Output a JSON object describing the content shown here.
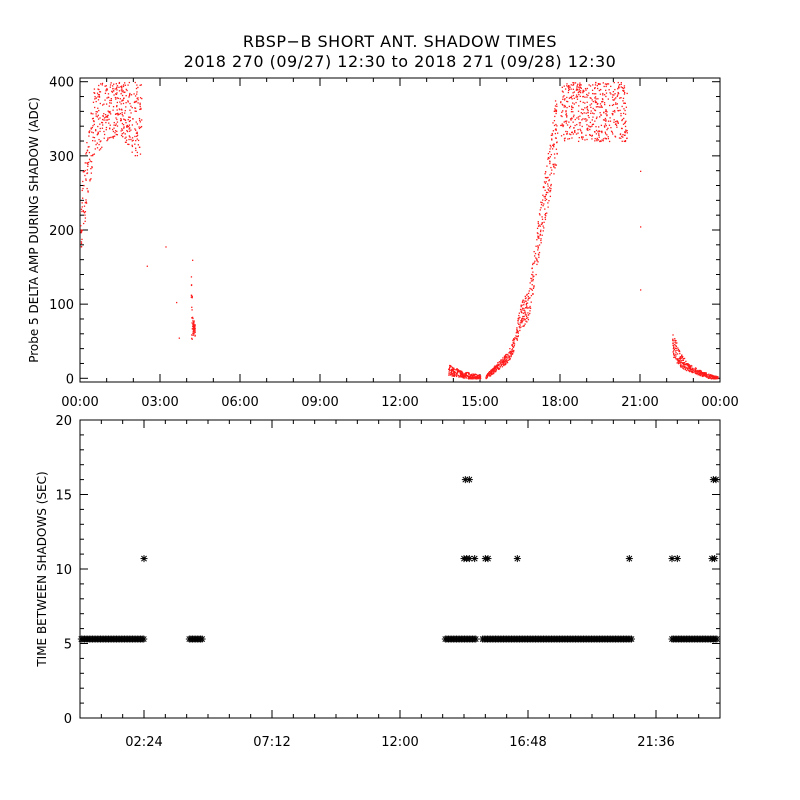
{
  "title": {
    "line1": "RBSP−B SHORT ANT. SHADOW TIMES",
    "line2": "2018 270 (09/27) 12:30 to 2018 271 (09/28) 12:30"
  },
  "colors": {
    "red": "#ff1a1a",
    "black": "#000000"
  },
  "chart_data": [
    {
      "type": "scatter",
      "ylabel": "Probe 5 DELTA AMP DURING SHADOW (ADC)",
      "xlim": [
        0,
        24
      ],
      "ylim": [
        -5,
        405
      ],
      "x_unit": "hours",
      "x_tick_labels": [
        "00:00",
        "03:00",
        "06:00",
        "09:00",
        "12:00",
        "15:00",
        "18:00",
        "21:00",
        "00:00"
      ],
      "y_tick_labels": [
        "0",
        "100",
        "200",
        "300",
        "400"
      ],
      "point_color": "#ff1a1a",
      "segments": [
        {
          "name": "early",
          "x": [
            0.0,
            0.5,
            1.0,
            1.5,
            2.0,
            2.3
          ],
          "y_low": [
            165,
            300,
            320,
            330,
            300,
            300
          ],
          "y_high": [
            250,
            400,
            400,
            400,
            400,
            400
          ]
        },
        {
          "name": "spike",
          "x": [
            4.15,
            4.2,
            4.25,
            4.3
          ],
          "y_low": [
            50,
            55,
            60,
            55
          ],
          "y_high": [
            160,
            85,
            80,
            75
          ]
        },
        {
          "name": "dip",
          "x": [
            13.8,
            14.2,
            14.6,
            15.0
          ],
          "y_low": [
            5,
            2,
            0,
            0
          ],
          "y_high": [
            20,
            12,
            8,
            5
          ]
        },
        {
          "name": "rise",
          "x": [
            15.2,
            15.6,
            16.0,
            16.3,
            16.5,
            16.8,
            17.0,
            17.3,
            17.6,
            17.9
          ],
          "y_low": [
            0,
            10,
            20,
            40,
            65,
            80,
            120,
            190,
            240,
            300
          ],
          "y_high": [
            5,
            20,
            35,
            60,
            100,
            120,
            170,
            250,
            320,
            400
          ]
        },
        {
          "name": "plateau",
          "x": [
            18.0,
            18.5,
            19.0,
            19.5,
            20.0,
            20.5
          ],
          "y_low": [
            320,
            320,
            320,
            320,
            320,
            320
          ],
          "y_high": [
            400,
            400,
            400,
            400,
            400,
            400
          ]
        },
        {
          "name": "late",
          "x": [
            22.2,
            22.5,
            22.8,
            23.2,
            23.6,
            23.9
          ],
          "y_low": [
            30,
            15,
            10,
            5,
            0,
            0
          ],
          "y_high": [
            65,
            35,
            20,
            12,
            6,
            3
          ]
        }
      ]
    },
    {
      "type": "scatter",
      "ylabel": "TIME BETWEEN SHADOWS (SEC)",
      "xlim": [
        0,
        24
      ],
      "ylim": [
        0,
        20
      ],
      "x_unit": "hours",
      "x_tick_labels": [
        "02:24",
        "07:12",
        "12:00",
        "16:48",
        "21:36"
      ],
      "y_tick_labels": [
        "0",
        "5",
        "10",
        "15",
        "20"
      ],
      "marker": "asterisk",
      "point_color": "#000000",
      "runs_at_5_3": [
        [
          0.05,
          2.45
        ],
        [
          4.1,
          4.6
        ],
        [
          13.7,
          14.9
        ],
        [
          15.1,
          20.7
        ],
        [
          22.2,
          23.9
        ]
      ],
      "points": [
        {
          "x": 2.4,
          "y": 10.7
        },
        {
          "x": 14.4,
          "y": 10.7
        },
        {
          "x": 14.5,
          "y": 10.7
        },
        {
          "x": 14.6,
          "y": 10.7
        },
        {
          "x": 14.8,
          "y": 10.7
        },
        {
          "x": 15.2,
          "y": 10.7
        },
        {
          "x": 15.3,
          "y": 10.7
        },
        {
          "x": 16.4,
          "y": 10.7
        },
        {
          "x": 20.6,
          "y": 10.7
        },
        {
          "x": 22.2,
          "y": 10.7
        },
        {
          "x": 22.4,
          "y": 10.7
        },
        {
          "x": 23.7,
          "y": 10.7
        },
        {
          "x": 23.8,
          "y": 10.7
        },
        {
          "x": 14.45,
          "y": 16.0
        },
        {
          "x": 14.6,
          "y": 16.0
        },
        {
          "x": 23.75,
          "y": 16.0
        },
        {
          "x": 23.85,
          "y": 16.0
        }
      ]
    }
  ]
}
